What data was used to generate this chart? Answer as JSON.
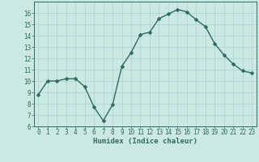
{
  "x": [
    0,
    1,
    2,
    3,
    4,
    5,
    6,
    7,
    8,
    9,
    10,
    11,
    12,
    13,
    14,
    15,
    16,
    17,
    18,
    19,
    20,
    21,
    22,
    23
  ],
  "y": [
    8.8,
    10.0,
    10.0,
    10.2,
    10.2,
    9.5,
    7.7,
    6.5,
    7.9,
    11.3,
    12.5,
    14.1,
    14.3,
    15.5,
    15.9,
    16.3,
    16.1,
    15.4,
    14.8,
    13.3,
    12.3,
    11.5,
    10.9,
    10.7
  ],
  "xlabel": "Humidex (Indice chaleur)",
  "xlim": [
    -0.5,
    23.5
  ],
  "ylim": [
    6,
    17
  ],
  "yticks": [
    6,
    7,
    8,
    9,
    10,
    11,
    12,
    13,
    14,
    15,
    16
  ],
  "xticks": [
    0,
    1,
    2,
    3,
    4,
    5,
    6,
    7,
    8,
    9,
    10,
    11,
    12,
    13,
    14,
    15,
    16,
    17,
    18,
    19,
    20,
    21,
    22,
    23
  ],
  "line_color": "#2e6b5e",
  "marker_color": "#2e6b5e",
  "bg_color": "#cce8e4",
  "grid_color": "#aad4cf",
  "axis_color": "#2e6b5e",
  "tick_color": "#2e6b5e",
  "label_color": "#2e6b5e",
  "font_size_axis": 6.5,
  "font_size_ticks": 5.5,
  "line_width": 1.0,
  "marker_size": 2.5
}
